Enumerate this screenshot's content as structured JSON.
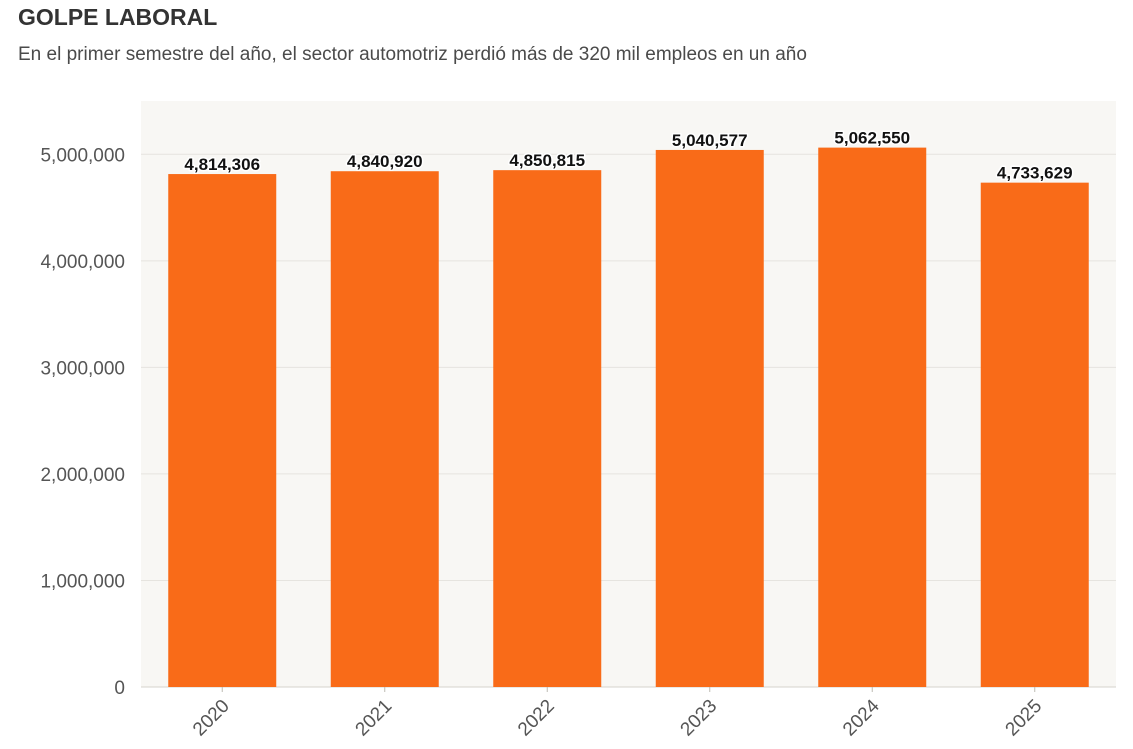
{
  "header": {
    "title": "GOLPE LABORAL",
    "subtitle": "En el primer semestre del año, el sector automotriz perdió más de 320 mil empleos en un año"
  },
  "colors": {
    "bar": "#f96b18",
    "plot_background": "#f8f7f4",
    "gridline": "#e6e4df"
  },
  "chart_data": {
    "type": "bar",
    "title": "GOLPE LABORAL",
    "subtitle": "En el primer semestre del año, el sector automotriz perdió más de 320 mil empleos en un año",
    "categories": [
      "2020",
      "2021",
      "2022",
      "2023",
      "2024",
      "2025"
    ],
    "values": [
      4814306,
      4840920,
      4850815,
      5040577,
      5062550,
      4733629
    ],
    "data_labels": [
      "4,814,306",
      "4,840,920",
      "4,850,815",
      "5,040,577",
      "5,062,550",
      "4,733,629"
    ],
    "y_ticks": [
      0,
      1000000,
      2000000,
      3000000,
      4000000,
      5000000
    ],
    "y_tick_labels": [
      "0",
      "1,000,000",
      "2,000,000",
      "3,000,000",
      "4,000,000",
      "5,000,000"
    ],
    "ylim": [
      0,
      5500000
    ],
    "xlabel": "",
    "ylabel": "",
    "grid": true,
    "legend": "none"
  }
}
